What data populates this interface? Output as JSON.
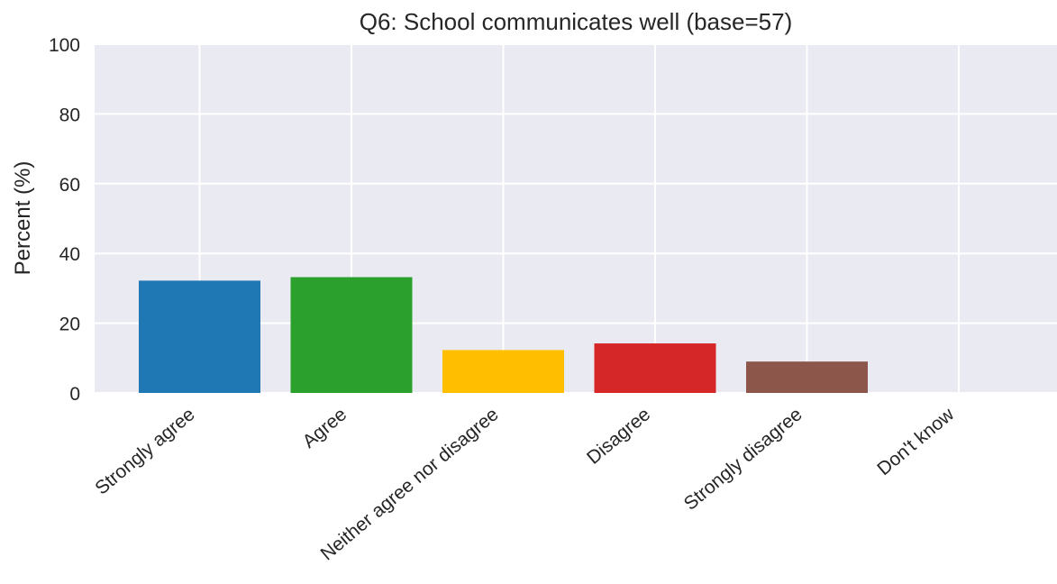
{
  "chart_data": {
    "type": "bar",
    "title": "Q6: School communicates well (base=57)",
    "xlabel": "",
    "ylabel": "Percent (%)",
    "ylim": [
      0,
      100
    ],
    "yticks": [
      0,
      20,
      40,
      60,
      80,
      100
    ],
    "categories": [
      "Strongly agree",
      "Agree",
      "Neither agree nor disagree",
      "Disagree",
      "Strongly disagree",
      "Don't know"
    ],
    "values": [
      32.2,
      33.2,
      12.3,
      14.2,
      9.0,
      0
    ],
    "colors": [
      "#1f77b4",
      "#2ca02c",
      "#ffbf00",
      "#d62728",
      "#8c564b",
      "#7f7f7f"
    ],
    "background": "#eaeaf2",
    "grid": true,
    "legend": "none"
  }
}
